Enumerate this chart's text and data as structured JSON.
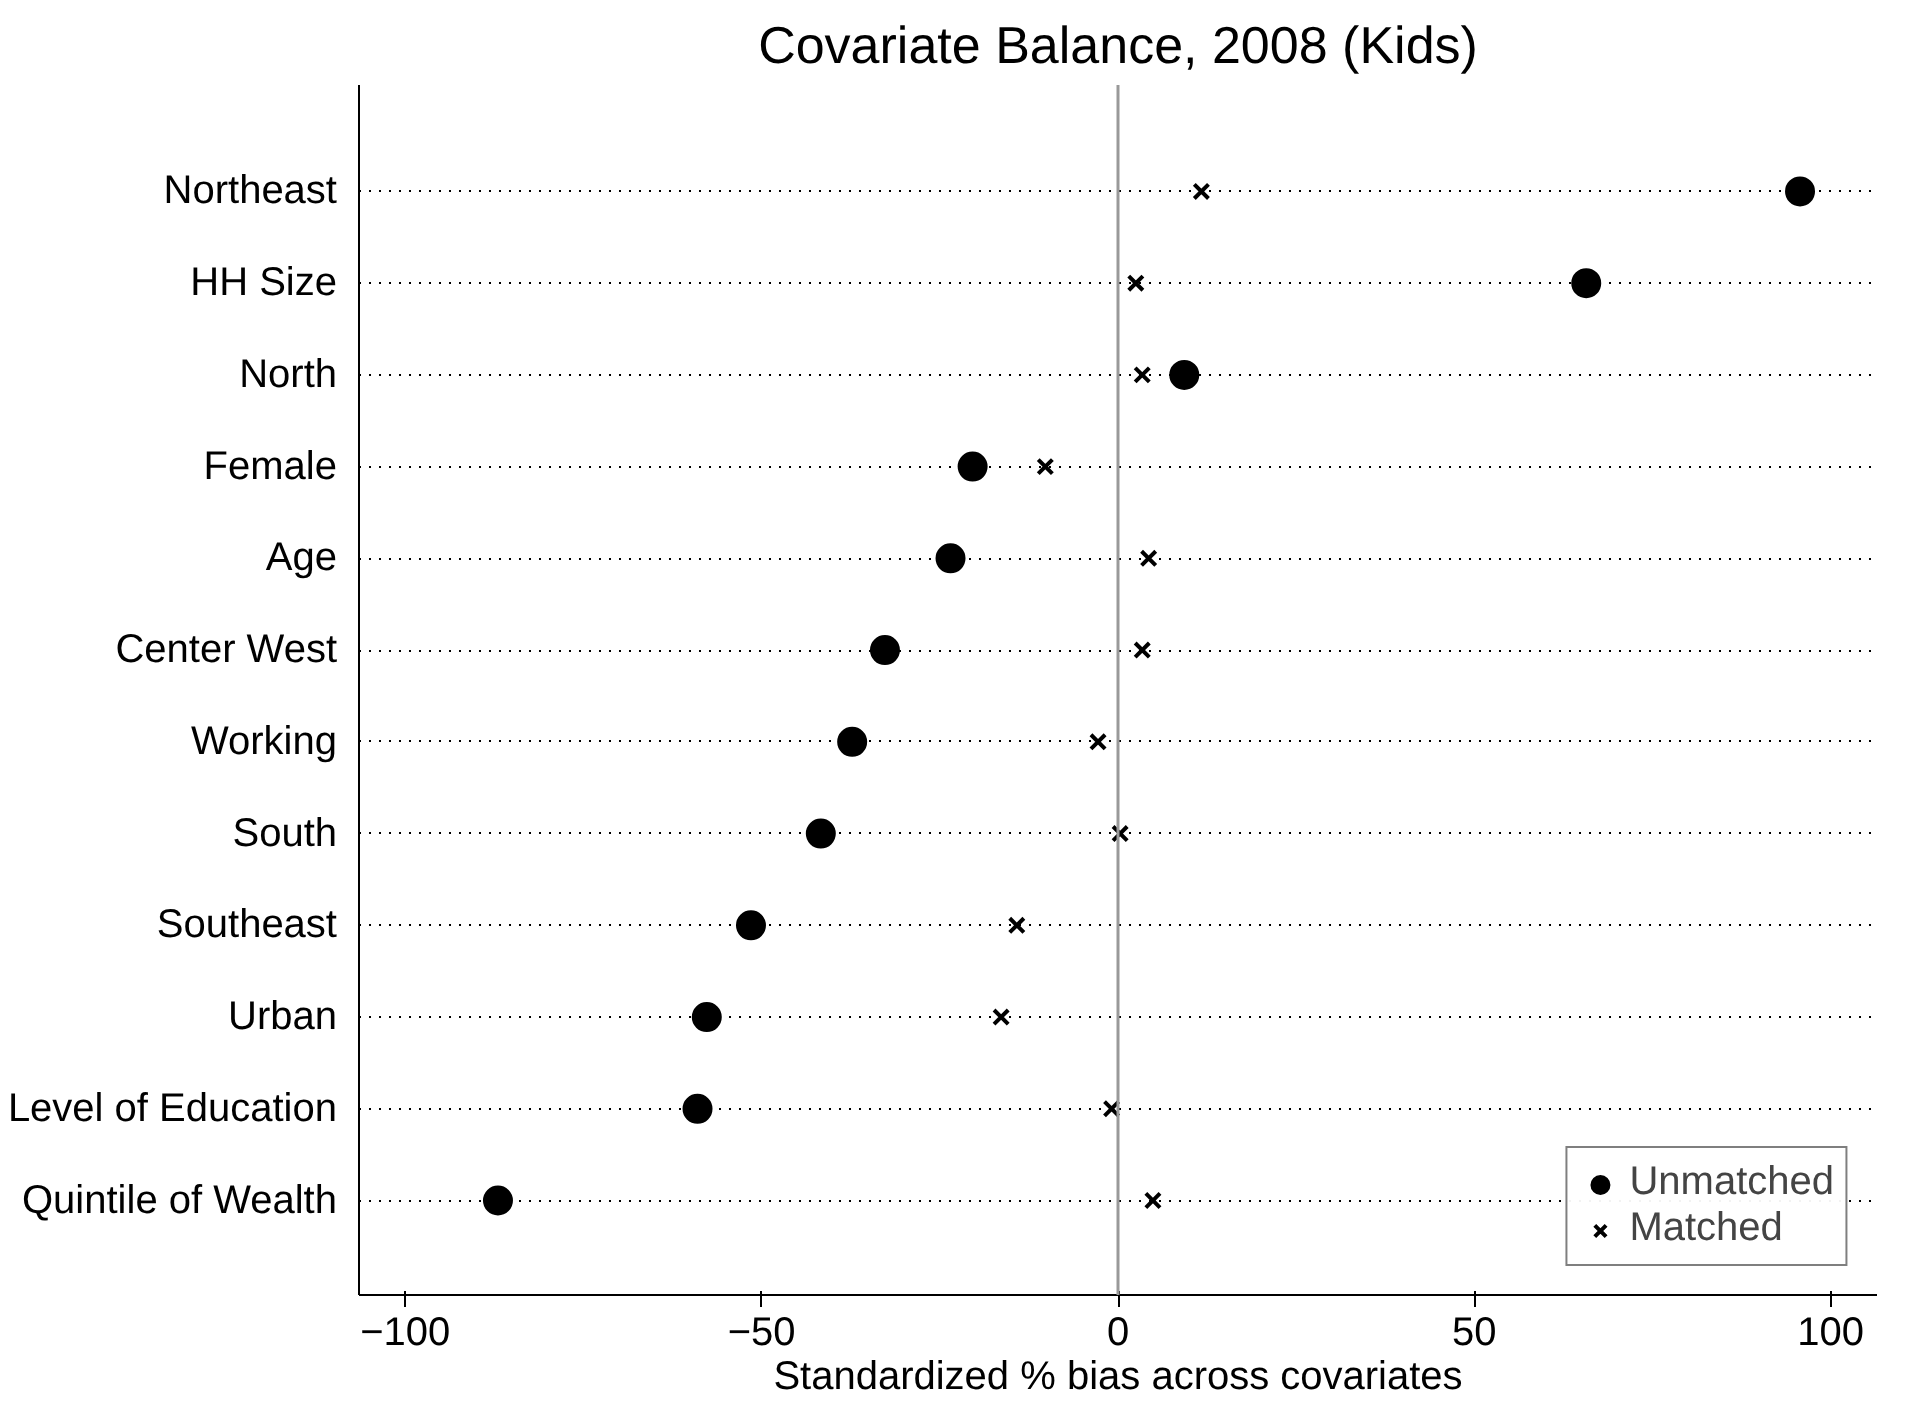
{
  "chart_data": {
    "type": "scatter",
    "title": "Covariate Balance, 2008 (Kids)",
    "xlabel": "Standardized % bias across covariates",
    "orientation": "horizontal",
    "categories": [
      "Northeast",
      "HH Size",
      "North",
      "Female",
      "Age",
      "Center West",
      "Working",
      "South",
      "Southeast",
      "Urban",
      "Level of Education",
      "Quintile of Wealth"
    ],
    "series": [
      {
        "name": "Unmatched",
        "color": "#000000",
        "marker": "circle",
        "values": [
          95.7,
          65.7,
          9.3,
          -20.4,
          -23.5,
          -32.7,
          -37.3,
          -41.7,
          -51.5,
          -57.7,
          -59,
          -87
        ]
      },
      {
        "name": "Matched",
        "color": "#000000",
        "marker": "cross",
        "values": [
          11.7,
          2.5,
          3.4,
          -10.2,
          4.3,
          3.4,
          -2.8,
          0.3,
          -14.2,
          -16.4,
          -0.9,
          4.9
        ]
      }
    ],
    "xlim": [
      -106.5,
      106.5
    ],
    "xticks": [
      -100,
      -50,
      0,
      50,
      100
    ],
    "ref_lines": [
      {
        "axis": "x",
        "value": 0,
        "color": "#999999"
      }
    ],
    "grid": "y",
    "legend": "bottom right"
  }
}
